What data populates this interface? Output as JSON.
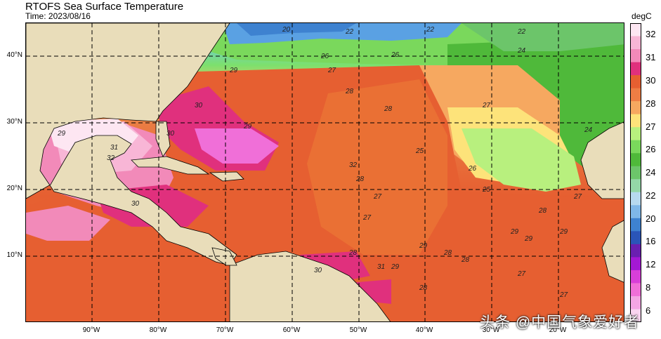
{
  "title": "RTOFS Sea Surface Temperature",
  "time": "Time: 2023/08/16",
  "unit": "degC",
  "lat_labels": [
    "40°N",
    "30°N",
    "20°N",
    "10°N"
  ],
  "lon_labels": [
    "90°W",
    "80°W",
    "70°W",
    "60°W",
    "50°W",
    "40°W",
    "30°W",
    "20°W"
  ],
  "colorbar": {
    "ticks": [
      "32",
      "31",
      "30",
      "28",
      "27",
      "26",
      "24",
      "22",
      "20",
      "16",
      "12",
      "8",
      "6"
    ],
    "colors": [
      "#fde6f2",
      "#f8b6d6",
      "#f28ab9",
      "#e0307d",
      "#e65f31",
      "#ee7d44",
      "#f6a860",
      "#fde37a",
      "#b8f07e",
      "#7ad85c",
      "#4fb93a",
      "#6cc56a",
      "#94d7a7",
      "#b7d9ef",
      "#7fb7e8",
      "#3e82d0",
      "#2a55b8",
      "#6a1fb0",
      "#a418d4",
      "#d83fd8",
      "#f06fd8",
      "#f4a6e4",
      "#f9d4ef"
    ]
  },
  "contour_labels": [
    "20",
    "22",
    "22",
    "22",
    "24",
    "24",
    "26",
    "26",
    "27",
    "27",
    "28",
    "28",
    "29",
    "29",
    "29",
    "30",
    "30",
    "31",
    "32",
    "32",
    "28",
    "27",
    "25",
    "27",
    "28",
    "30",
    "31",
    "29",
    "28",
    "27",
    "29",
    "29",
    "28",
    "27",
    "28",
    "29",
    "30",
    "26",
    "25",
    "27",
    "28",
    "29"
  ],
  "colors": {
    "land": "#e9ddba",
    "grid": "#000000"
  },
  "watermark": "头条 @中国气象爱好者"
}
